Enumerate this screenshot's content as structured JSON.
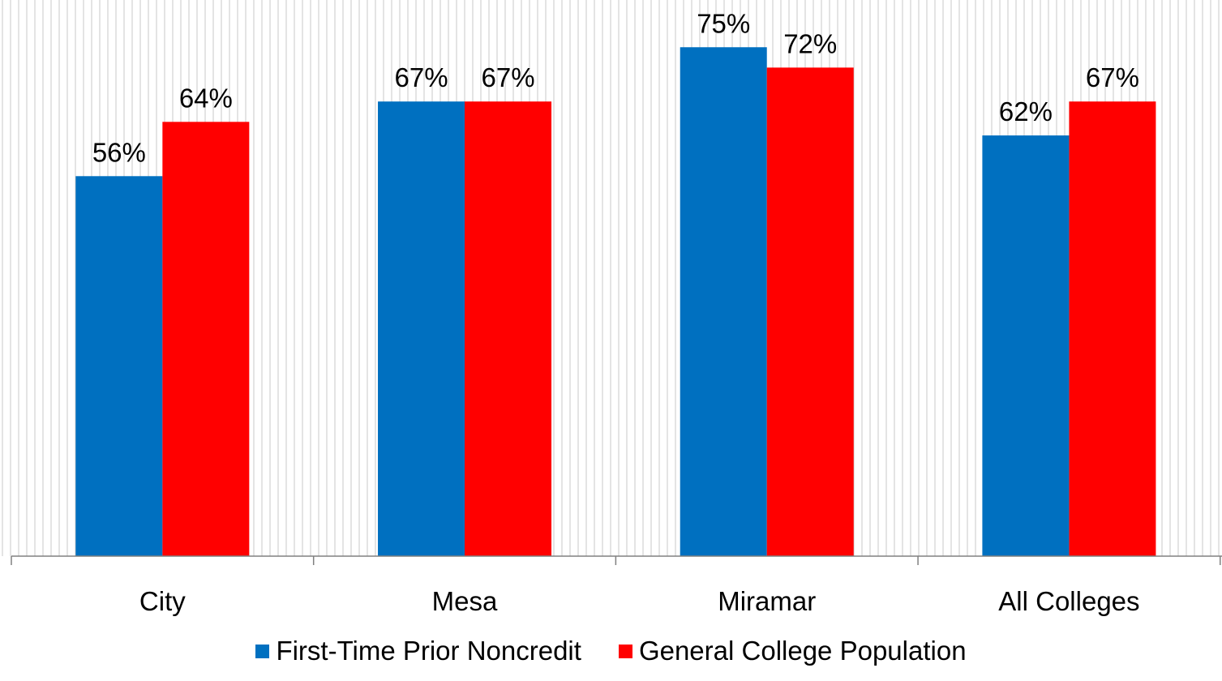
{
  "chart_data": {
    "type": "bar",
    "categories": [
      "City",
      "Mesa",
      "Miramar",
      "All Colleges"
    ],
    "series": [
      {
        "name": "First-Time Prior Noncredit",
        "values": [
          56,
          67,
          75,
          62
        ],
        "labels": [
          "56%",
          "67%",
          "75%",
          "62%"
        ],
        "color": "#0070C0"
      },
      {
        "name": "General College Population",
        "values": [
          64,
          67,
          72,
          67
        ],
        "labels": [
          "64%",
          "67%",
          "72%",
          "67%"
        ],
        "color": "#FF0000"
      }
    ],
    "ylim": [
      0,
      100
    ],
    "grid": "vertical",
    "legend": "bottom"
  }
}
